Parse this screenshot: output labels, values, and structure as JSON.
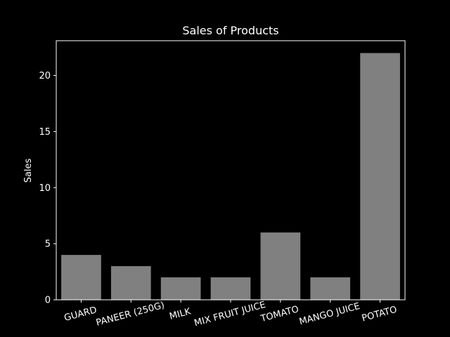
{
  "chart_data": {
    "type": "bar",
    "title": "Sales of Products",
    "xlabel": "",
    "ylabel": "Sales",
    "categories": [
      "GUARD",
      "PANEER (250G)",
      "MILK",
      "MIX FRUIT JUICE",
      "TOMATO",
      "MANGO JUICE",
      "POTATO"
    ],
    "values": [
      4,
      3,
      2,
      2,
      6,
      2,
      22
    ],
    "ylim": [
      0,
      23.1
    ],
    "yticks": [
      0,
      5,
      10,
      15,
      20
    ],
    "grid": false,
    "colors": {
      "background": "#000000",
      "bar": "#808080",
      "text": "#ffffff",
      "axes": "#ffffff"
    }
  }
}
